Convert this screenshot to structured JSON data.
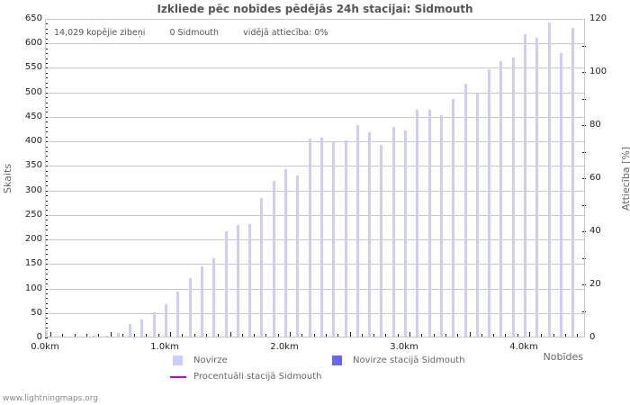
{
  "title": "Izkliede pēc nobīdes pēdējās 24h stacijai: Sidmouth",
  "stats": {
    "total": "14,029 kopējie zibeņi",
    "station": "0 Sidmouth",
    "ratio": "vidējā attiecība: 0%"
  },
  "axes": {
    "y_left_title": "Skaits",
    "y_right_title": "Attiecība [%]",
    "x_title": "Nobīdes",
    "y_left_ticks": [
      "0",
      "50",
      "100",
      "150",
      "200",
      "250",
      "300",
      "350",
      "400",
      "450",
      "500",
      "550",
      "600",
      "650"
    ],
    "y_right_ticks": [
      "0",
      "20",
      "40",
      "60",
      "80",
      "100",
      "120"
    ],
    "x_ticks": [
      "0.0km",
      "1.0km",
      "2.0km",
      "3.0km",
      "4.0km"
    ]
  },
  "legend": {
    "novirze": "Novirze",
    "novirze_station": "Novirze stacijā Sidmouth",
    "percent_station": "Procentuāli stacijā Sidmouth"
  },
  "colors": {
    "novirze": "#ccccff",
    "novirze_station": "#6666ff",
    "percent_station": "#cc00cc",
    "grid": "#c8c8c8"
  },
  "footer": "www.lightningmaps.org",
  "chart_data": {
    "type": "bar",
    "title": "Izkliede pēc nobīdes pēdējās 24h stacijai: Sidmouth",
    "xlabel": "Nobīdes",
    "ylabel": "Skaits",
    "y2label": "Attiecība [%]",
    "ylim": [
      0,
      650
    ],
    "y2lim": [
      0,
      120
    ],
    "grid": true,
    "legend_position": "bottom",
    "bin_km": 0.1,
    "x": [
      0.0,
      0.1,
      0.2,
      0.3,
      0.4,
      0.5,
      0.6,
      0.7,
      0.8,
      0.9,
      1.0,
      1.1,
      1.2,
      1.3,
      1.4,
      1.5,
      1.6,
      1.7,
      1.8,
      1.9,
      2.0,
      2.1,
      2.2,
      2.3,
      2.4,
      2.5,
      2.6,
      2.7,
      2.8,
      2.9,
      3.0,
      3.1,
      3.2,
      3.3,
      3.4,
      3.5,
      3.6,
      3.7,
      3.8,
      3.9,
      4.0,
      4.1,
      4.2,
      4.3,
      4.4
    ],
    "series": [
      {
        "name": "Novirze",
        "values": [
          15,
          0,
          0,
          0,
          3,
          4,
          10,
          28,
          36,
          52,
          68,
          93,
          122,
          145,
          161,
          217,
          230,
          231,
          284,
          320,
          343,
          330,
          405,
          408,
          400,
          403,
          433,
          419,
          393,
          429,
          423,
          464,
          465,
          454,
          486,
          518,
          497,
          548,
          563,
          571,
          618,
          612,
          642,
          580,
          632
        ]
      },
      {
        "name": "Novirze stacijā Sidmouth",
        "values": [
          0,
          0,
          0,
          0,
          0,
          0,
          0,
          0,
          0,
          0,
          0,
          0,
          0,
          0,
          0,
          0,
          0,
          0,
          0,
          0,
          0,
          0,
          0,
          0,
          0,
          0,
          0,
          0,
          0,
          0,
          0,
          0,
          0,
          0,
          0,
          0,
          0,
          0,
          0,
          0,
          0,
          0,
          0,
          0,
          0
        ]
      },
      {
        "name": "Procentuāli stacijā Sidmouth",
        "axis": "right",
        "values": [
          0,
          0,
          0,
          0,
          0,
          0,
          0,
          0,
          0,
          0,
          0,
          0,
          0,
          0,
          0,
          0,
          0,
          0,
          0,
          0,
          0,
          0,
          0,
          0,
          0,
          0,
          0,
          0,
          0,
          0,
          0,
          0,
          0,
          0,
          0,
          0,
          0,
          0,
          0,
          0,
          0,
          0,
          0,
          0,
          0
        ]
      }
    ]
  }
}
